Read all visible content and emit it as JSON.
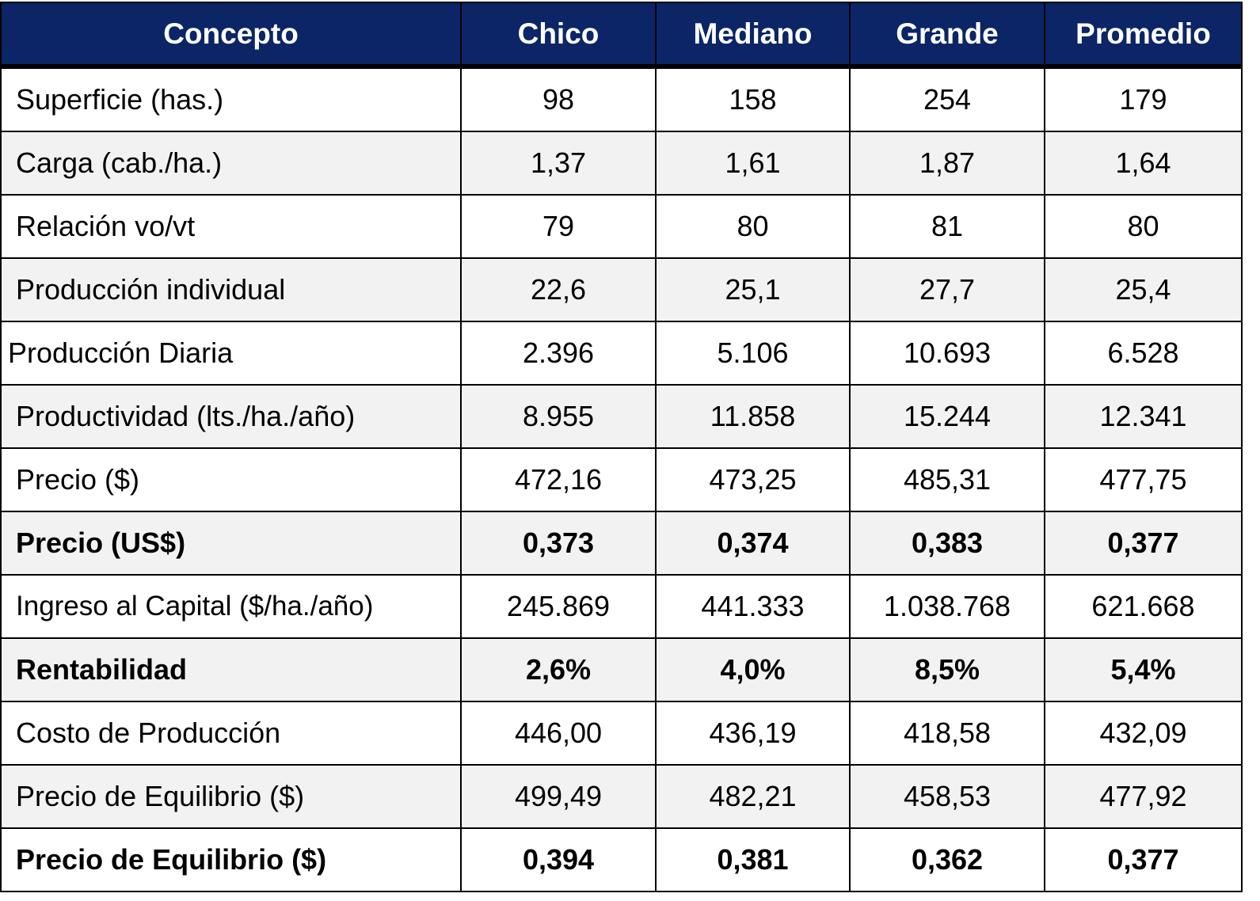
{
  "table": {
    "headers": [
      "Concepto",
      "Chico",
      "Mediano",
      "Grande",
      "Promedio"
    ],
    "rows": [
      {
        "label": "Superficie (has.)",
        "values": [
          "98",
          "158",
          "254",
          "179"
        ],
        "bold": false,
        "shaded": false
      },
      {
        "label": "Carga (cab./ha.)",
        "values": [
          "1,37",
          "1,61",
          "1,87",
          "1,64"
        ],
        "bold": false,
        "shaded": true
      },
      {
        "label": "Relación vo/vt",
        "values": [
          "79",
          "80",
          "81",
          "80"
        ],
        "bold": false,
        "shaded": false
      },
      {
        "label": "Producción individual",
        "values": [
          "22,6",
          "25,1",
          "27,7",
          "25,4"
        ],
        "bold": false,
        "shaded": true
      },
      {
        "label": "Producción Diaria",
        "values": [
          "2.396",
          "5.106",
          "10.693",
          "6.528"
        ],
        "bold": false,
        "shaded": false
      },
      {
        "label": "Productividad (lts./ha./año)",
        "values": [
          "8.955",
          "11.858",
          "15.244",
          "12.341"
        ],
        "bold": false,
        "shaded": true
      },
      {
        "label": "Precio ($)",
        "values": [
          "472,16",
          "473,25",
          "485,31",
          "477,75"
        ],
        "bold": false,
        "shaded": false
      },
      {
        "label": "Precio (US$)",
        "values": [
          "0,373",
          "0,374",
          "0,383",
          "0,377"
        ],
        "bold": true,
        "shaded": true
      },
      {
        "label": "Ingreso al Capital ($/ha./año)",
        "values": [
          "245.869",
          "441.333",
          "1.038.768",
          "621.668"
        ],
        "bold": false,
        "shaded": false
      },
      {
        "label": "Rentabilidad",
        "values": [
          "2,6%",
          "4,0%",
          "8,5%",
          "5,4%"
        ],
        "bold": true,
        "shaded": true
      },
      {
        "label": "Costo de Producción",
        "values": [
          "446,00",
          "436,19",
          "418,58",
          "432,09"
        ],
        "bold": false,
        "shaded": false
      },
      {
        "label": "Precio de Equilibrio ($)",
        "values": [
          "499,49",
          "482,21",
          "458,53",
          "477,92"
        ],
        "bold": false,
        "shaded": true
      },
      {
        "label": "Precio de Equilibrio ($)",
        "values": [
          "0,394",
          "0,381",
          "0,362",
          "0,377"
        ],
        "bold": true,
        "shaded": false
      }
    ]
  },
  "colors": {
    "header_background": "#0b2566",
    "header_text": "#ffffff",
    "shaded_row": "#f2f2f2",
    "grid_lines": "#000000"
  }
}
